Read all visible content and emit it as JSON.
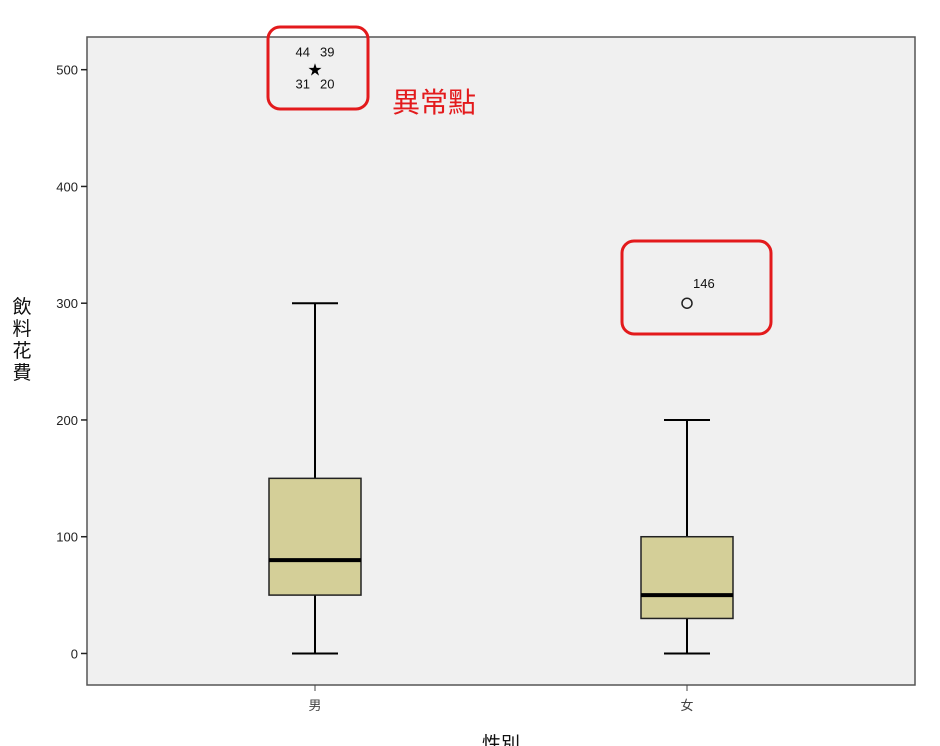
{
  "chart_data": {
    "type": "boxplot",
    "xlabel": "性別",
    "ylabel": "飲料花費",
    "ylim": [
      -27,
      528
    ],
    "yticks": [
      0,
      100,
      200,
      300,
      400,
      500
    ],
    "categories": [
      "男",
      "女"
    ],
    "boxes": [
      {
        "category": "男",
        "whisker_low": 0,
        "q1": 50,
        "median": 80,
        "q3": 150,
        "whisker_high": 300,
        "outliers": [],
        "extremes": [
          {
            "value": 500,
            "labels": [
              "44",
              "39",
              "31",
              "20"
            ]
          }
        ]
      },
      {
        "category": "女",
        "whisker_low": 0,
        "q1": 30,
        "median": 50,
        "q3": 100,
        "whisker_high": 200,
        "outliers": [
          {
            "value": 300,
            "labels": [
              "146"
            ]
          }
        ],
        "extremes": []
      }
    ],
    "annotation": "異常點",
    "colors": {
      "plot_bg": "#f0f0f0",
      "box_fill": "#d4cf98",
      "frame": "#555555",
      "highlight": "#e31a1c"
    }
  }
}
